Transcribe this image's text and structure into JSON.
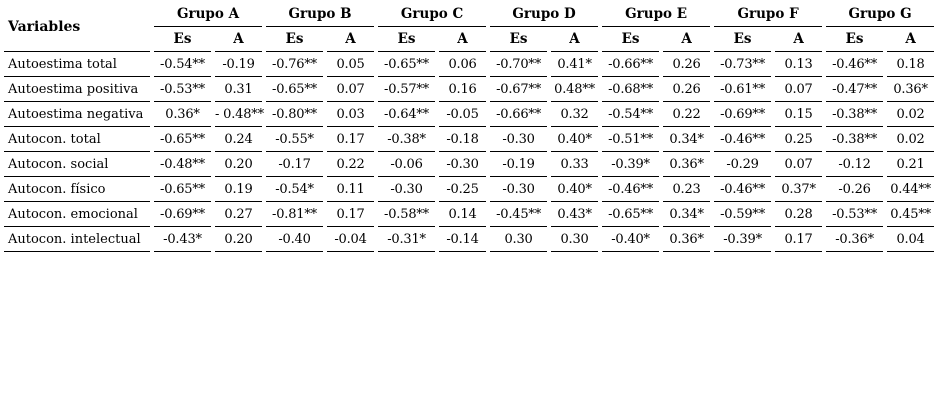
{
  "table": {
    "variables_header": "Variables",
    "groups": [
      "Grupo A",
      "Grupo B",
      "Grupo C",
      "Grupo D",
      "Grupo E",
      "Grupo F",
      "Grupo G"
    ],
    "subheaders": [
      "Es",
      "A"
    ],
    "rows": [
      {
        "label": "Autoestima total",
        "values": [
          "-0.54**",
          "-0.19",
          "-0.76**",
          "0.05",
          "-0.65**",
          "0.06",
          "-0.70**",
          "0.41*",
          "-0.66**",
          "0.26",
          "-0.73**",
          "0.13",
          "-0.46**",
          "0.18"
        ]
      },
      {
        "label": "Autoestima positiva",
        "values": [
          "-0.53**",
          "0.31",
          "-0.65**",
          "0.07",
          "-0.57**",
          "0.16",
          "-0.67**",
          "0.48**",
          "-0.68**",
          "0.26",
          "-0.61**",
          "0.07",
          "-0.47**",
          "0.36*"
        ]
      },
      {
        "label": "Autoestima negativa",
        "values": [
          "0.36*",
          "- 0.48**",
          "-0.80**",
          "0.03",
          "-0.64**",
          "-0.05",
          "-0.66**",
          "0.32",
          "-0.54**",
          "0.22",
          "-0.69**",
          "0.15",
          "-0.38**",
          "0.02"
        ]
      },
      {
        "label": "Autocon. total",
        "values": [
          "-0.65**",
          "0.24",
          "-0.55*",
          "0.17",
          "-0.38*",
          "-0.18",
          "-0.30",
          "0.40*",
          "-0.51**",
          "0.34*",
          "-0.46**",
          "0.25",
          "-0.38**",
          "0.02"
        ]
      },
      {
        "label": "Autocon. social",
        "values": [
          "-0.48**",
          "0.20",
          "-0.17",
          "0.22",
          "-0.06",
          "-0.30",
          "-0.19",
          "0.33",
          "-0.39*",
          "0.36*",
          "-0.29",
          "0.07",
          "-0.12",
          "0.21"
        ]
      },
      {
        "label": "Autocon. físico",
        "values": [
          "-0.65**",
          "0.19",
          "-0.54*",
          "0.11",
          "-0.30",
          "-0.25",
          "-0.30",
          "0.40*",
          "-0.46**",
          "0.23",
          "-0.46**",
          "0.37*",
          "-0.26",
          "0.44**"
        ]
      },
      {
        "label": "Autocon. emocional",
        "values": [
          "-0.69**",
          "0.27",
          "-0.81**",
          "0.17",
          "-0.58**",
          "0.14",
          "-0.45**",
          "0.43*",
          "-0.65**",
          "0.34*",
          "-0.59**",
          "0.28",
          "-0.53**",
          "0.45**"
        ]
      },
      {
        "label": "Autocon. intelectual",
        "values": [
          "-0.43*",
          "0.20",
          "-0.40",
          "-0.04",
          "-0.31*",
          "-0.14",
          "0.30",
          "0.30",
          "-0.40*",
          "0.36*",
          "-0.39*",
          "0.17",
          "-0.36*",
          "0.04"
        ]
      }
    ]
  }
}
